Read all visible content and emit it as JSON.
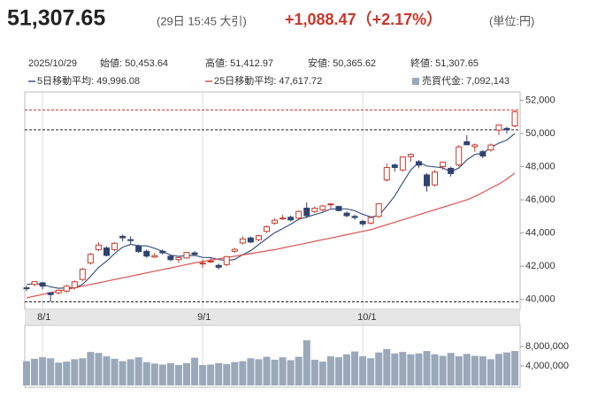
{
  "header": {
    "price": "51,307.65",
    "time": "(29日 15:45 大引)",
    "change": "+1,088.47（+2.17%）",
    "unit": "(単位:円)"
  },
  "info": {
    "date": "2025/10/29",
    "items": [
      "始値: 50,453.64",
      "高値: 51,412.97",
      "安値: 50,365.62",
      "終値: 51,307.65"
    ]
  },
  "chart_data": [
    {
      "type": "candlestick",
      "categories": [
        null,
        null,
        "8/1",
        null,
        null,
        null,
        null,
        null,
        null,
        null,
        null,
        null,
        null,
        null,
        null,
        null,
        null,
        null,
        null,
        null,
        null,
        null,
        "9/1",
        null,
        null,
        null,
        null,
        null,
        null,
        null,
        null,
        null,
        null,
        null,
        null,
        null,
        null,
        null,
        null,
        null,
        null,
        null,
        "10/1",
        null,
        null,
        null,
        null,
        null,
        null,
        null,
        null,
        null,
        null,
        null,
        null,
        null,
        null,
        null,
        null,
        null,
        null,
        null
      ],
      "open": [
        40700,
        40900,
        41000,
        40400,
        40400,
        40500,
        40700,
        41200,
        42200,
        43000,
        43100,
        43000,
        43800,
        43600,
        43200,
        42900,
        42550,
        42900,
        42600,
        42400,
        42500,
        42800,
        42150,
        42300,
        42050,
        42100,
        42900,
        43400,
        43700,
        43600,
        44100,
        44600,
        44900,
        44950,
        44900,
        45500,
        45300,
        45400,
        45700,
        45600,
        45200,
        45000,
        44700,
        44600,
        45000,
        47200,
        48100,
        47800,
        48600,
        48300,
        47500,
        46900,
        48000,
        47900,
        48100,
        49500,
        49200,
        48900,
        49000,
        50200,
        50300,
        50453.64
      ],
      "high": [
        40820,
        41100,
        41050,
        40450,
        40600,
        40900,
        41150,
        41900,
        42800,
        43450,
        43200,
        43450,
        43900,
        43800,
        43300,
        43000,
        42800,
        43000,
        42700,
        42600,
        42850,
        42900,
        42400,
        42500,
        42150,
        42600,
        43100,
        43800,
        43800,
        43900,
        44450,
        44900,
        45100,
        45050,
        45350,
        45850,
        45600,
        45700,
        45800,
        45650,
        45300,
        45100,
        44800,
        45000,
        45800,
        48200,
        48200,
        48600,
        48800,
        48400,
        47600,
        47800,
        48300,
        48000,
        49300,
        49900,
        49400,
        49000,
        49400,
        50550,
        50400,
        51412.97
      ],
      "low": [
        40500,
        40800,
        40600,
        39850,
        40300,
        40400,
        40600,
        41100,
        42100,
        42900,
        42600,
        42900,
        43500,
        43300,
        42800,
        42500,
        42500,
        42700,
        42300,
        42200,
        42450,
        42650,
        41900,
        42200,
        41800,
        42000,
        42800,
        43300,
        43400,
        43500,
        44000,
        44500,
        44800,
        44700,
        44800,
        44900,
        45200,
        45300,
        45500,
        45300,
        44950,
        44800,
        44400,
        44500,
        44900,
        47100,
        47700,
        47700,
        48300,
        47900,
        46500,
        46800,
        47800,
        47400,
        48000,
        49300,
        48900,
        48500,
        48900,
        49900,
        50000,
        50365.62
      ],
      "close": [
        40654,
        41069,
        40799,
        40290,
        40549,
        40794,
        41059,
        41820,
        42718,
        43274,
        42649,
        43378,
        43714,
        43546,
        42888,
        42610,
        42633,
        42807,
        42394,
        42520,
        42828,
        42718,
        42188,
        42310,
        41938,
        42580,
        43018,
        43643,
        43459,
        43837,
        44372,
        44768,
        44902,
        44790,
        45303,
        45045,
        45493,
        45630,
        45754,
        45354,
        45043,
        44932,
        44550,
        44936,
        45769,
        47944,
        47950,
        48580,
        48735,
        48088,
        46847,
        47672,
        48277,
        47582,
        49185,
        49316,
        49307,
        48641,
        49299,
        50512,
        50219,
        51307.65
      ],
      "up_color": "#c8382a",
      "down_color": "#2f4470",
      "series": [
        {
          "name": "5日移動平均: 49,996.08",
          "color": "#3c5585",
          "values": [
            40900,
            40950,
            40900,
            40750,
            40672,
            40700,
            40698,
            40902,
            41388,
            41933,
            42304,
            42768,
            43147,
            43312,
            43235,
            43227,
            43078,
            42897,
            42666,
            42593,
            42636,
            42653,
            42530,
            42513,
            42396,
            42347,
            42407,
            42698,
            42928,
            43307,
            43666,
            44016,
            44268,
            44534,
            44827,
            44962,
            45107,
            45252,
            45445,
            45455,
            45455,
            45343,
            45127,
            44963,
            45046,
            45626,
            46230,
            47036,
            47796,
            48259,
            48040,
            47984,
            47924,
            47693,
            47913,
            48406,
            48733,
            48806,
            49150,
            49415,
            49596,
            49996.08
          ]
        },
        {
          "name": "25日移動平均: 47,617.72",
          "color": "#d9534f",
          "values": [
            40100,
            40200,
            40300,
            40400,
            40500,
            40600,
            40700,
            40800,
            40900,
            41000,
            41100,
            41200,
            41300,
            41400,
            41500,
            41600,
            41700,
            41800,
            41900,
            42000,
            42100,
            42200,
            42280,
            42360,
            42440,
            42520,
            42600,
            42680,
            42760,
            42840,
            42920,
            43000,
            43100,
            43200,
            43300,
            43400,
            43500,
            43600,
            43700,
            43800,
            43900,
            44000,
            44100,
            44200,
            44350,
            44500,
            44650,
            44800,
            44950,
            45100,
            45250,
            45400,
            45550,
            45700,
            45850,
            46000,
            46200,
            46450,
            46700,
            46950,
            47250,
            47617.72
          ]
        }
      ],
      "ylim": [
        39400,
        52500
      ],
      "yticks": [
        {
          "value": 40000,
          "label": "40,000"
        },
        {
          "value": 42000,
          "label": "42,000"
        },
        {
          "value": 44000,
          "label": "44,000"
        },
        {
          "value": 46000,
          "label": "46,000"
        },
        {
          "value": 48000,
          "label": "48,000"
        },
        {
          "value": 50000,
          "label": "50,000"
        },
        {
          "value": 52000,
          "label": "52,000"
        }
      ]
    },
    {
      "type": "bar",
      "series": [
        {
          "name": "売買代金: 7,092,143",
          "color": "#9aa8ba",
          "values": [
            5000000,
            5500000,
            5800000,
            5600000,
            4700000,
            4900000,
            5400000,
            5600000,
            6900000,
            6700000,
            6000000,
            5500000,
            5000000,
            5400000,
            5800000,
            4800000,
            4500000,
            4300000,
            4600000,
            4200000,
            4600000,
            5700000,
            4200000,
            4300000,
            4600000,
            4400000,
            4800000,
            5000000,
            5600000,
            5400000,
            5900000,
            5300000,
            5800000,
            5200000,
            5900000,
            9300000,
            5300000,
            4900000,
            6000000,
            5800000,
            6400000,
            7000000,
            6000000,
            5600000,
            6800000,
            7500000,
            6600000,
            6900000,
            6400000,
            6600000,
            7100000,
            6400000,
            6100000,
            6700000,
            6000000,
            6500000,
            6100000,
            6000000,
            5400000,
            6500000,
            6800000,
            7092143
          ]
        }
      ],
      "ylim": [
        0,
        12400000
      ],
      "yticks": [
        {
          "value": 4000000,
          "label": "4,000,000"
        },
        {
          "value": 8000000,
          "label": "8,000,000"
        }
      ]
    }
  ]
}
